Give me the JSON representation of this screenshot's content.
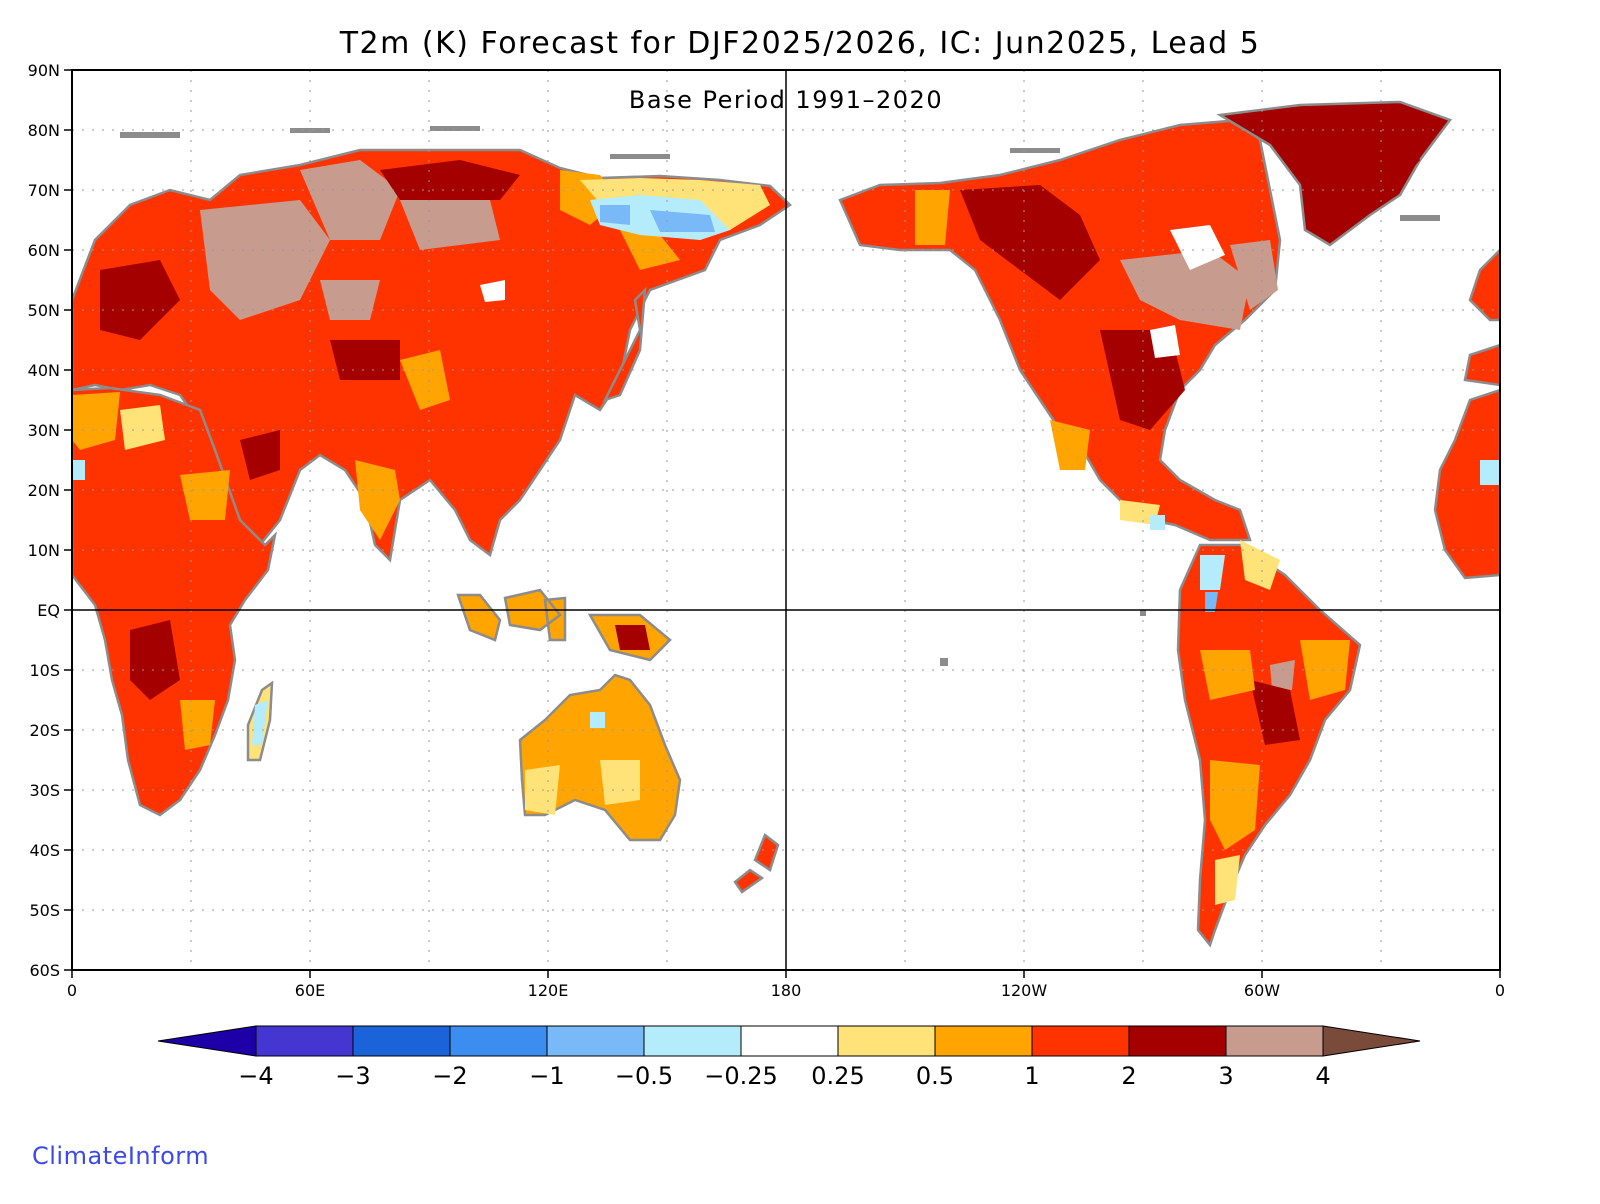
{
  "title": "T2m (K) Forecast for DJF2025/2026, IC: Jun2025, Lead 5",
  "subtitle": "Base Period 1991–2020",
  "credit": "ClimateInform",
  "axes": {
    "lat_labels": [
      "90N",
      "80N",
      "70N",
      "60N",
      "50N",
      "40N",
      "30N",
      "20N",
      "10N",
      "EQ",
      "10S",
      "20S",
      "30S",
      "40S",
      "50S",
      "60S"
    ],
    "lon_labels": [
      "0",
      "60E",
      "120E",
      "180",
      "120W",
      "60W",
      "0"
    ]
  },
  "colorbar": {
    "ticks": [
      "−4",
      "−3",
      "−2",
      "−1",
      "−0.5",
      "−0.25",
      "0.25",
      "0.5",
      "1",
      "2",
      "3",
      "4"
    ],
    "colors": [
      "#1e00a8",
      "#4536d2",
      "#1a63d8",
      "#3b8ef0",
      "#7ab9f8",
      "#b4ecfb",
      "#ffffff",
      "#ffe278",
      "#ffa400",
      "#ff3300",
      "#a40000",
      "#c79c8e",
      "#7a4a3a"
    ]
  },
  "colors": {
    "coast": "#8c8c8c",
    "land_default": "#ff3300",
    "title_text": "#000000",
    "credit_text": "#3d4ae8"
  }
}
